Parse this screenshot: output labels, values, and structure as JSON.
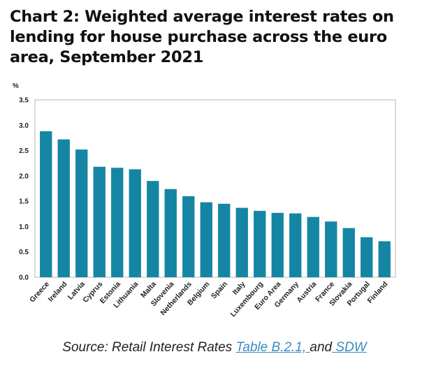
{
  "title": "Chart 2: Weighted average interest rates on lending for house purchase across the euro area, September 2021",
  "source": {
    "prefix": "Source: Retail Interest Rates ",
    "link1": "Table B.2.1, ",
    "middle": "and",
    "link2": " SDW"
  },
  "colors": {
    "bar": "#1486a3",
    "axis": "#888888",
    "text": "#222222"
  },
  "chart_data": {
    "type": "bar",
    "unit": "%",
    "ylim": [
      0,
      3.5
    ],
    "yticks": [
      "0.0",
      "0.5",
      "1.0",
      "1.5",
      "2.0",
      "2.5",
      "3.0",
      "3.5"
    ],
    "categories": [
      "Greece",
      "Ireland",
      "Latvia",
      "Cyprus",
      "Estonia",
      "Lithuania",
      "Malta",
      "Slovenia",
      "Netherlands",
      "Belgium",
      "Spain",
      "Italy",
      "Luxembourg",
      "Euro Area",
      "Germany",
      "Austria",
      "France",
      "Slovakia",
      "Portugal",
      "Finland"
    ],
    "values": [
      2.88,
      2.72,
      2.52,
      2.18,
      2.16,
      2.13,
      1.9,
      1.74,
      1.6,
      1.48,
      1.45,
      1.37,
      1.31,
      1.27,
      1.26,
      1.19,
      1.1,
      0.97,
      0.79,
      0.71
    ],
    "grid": false,
    "legend": "none"
  }
}
